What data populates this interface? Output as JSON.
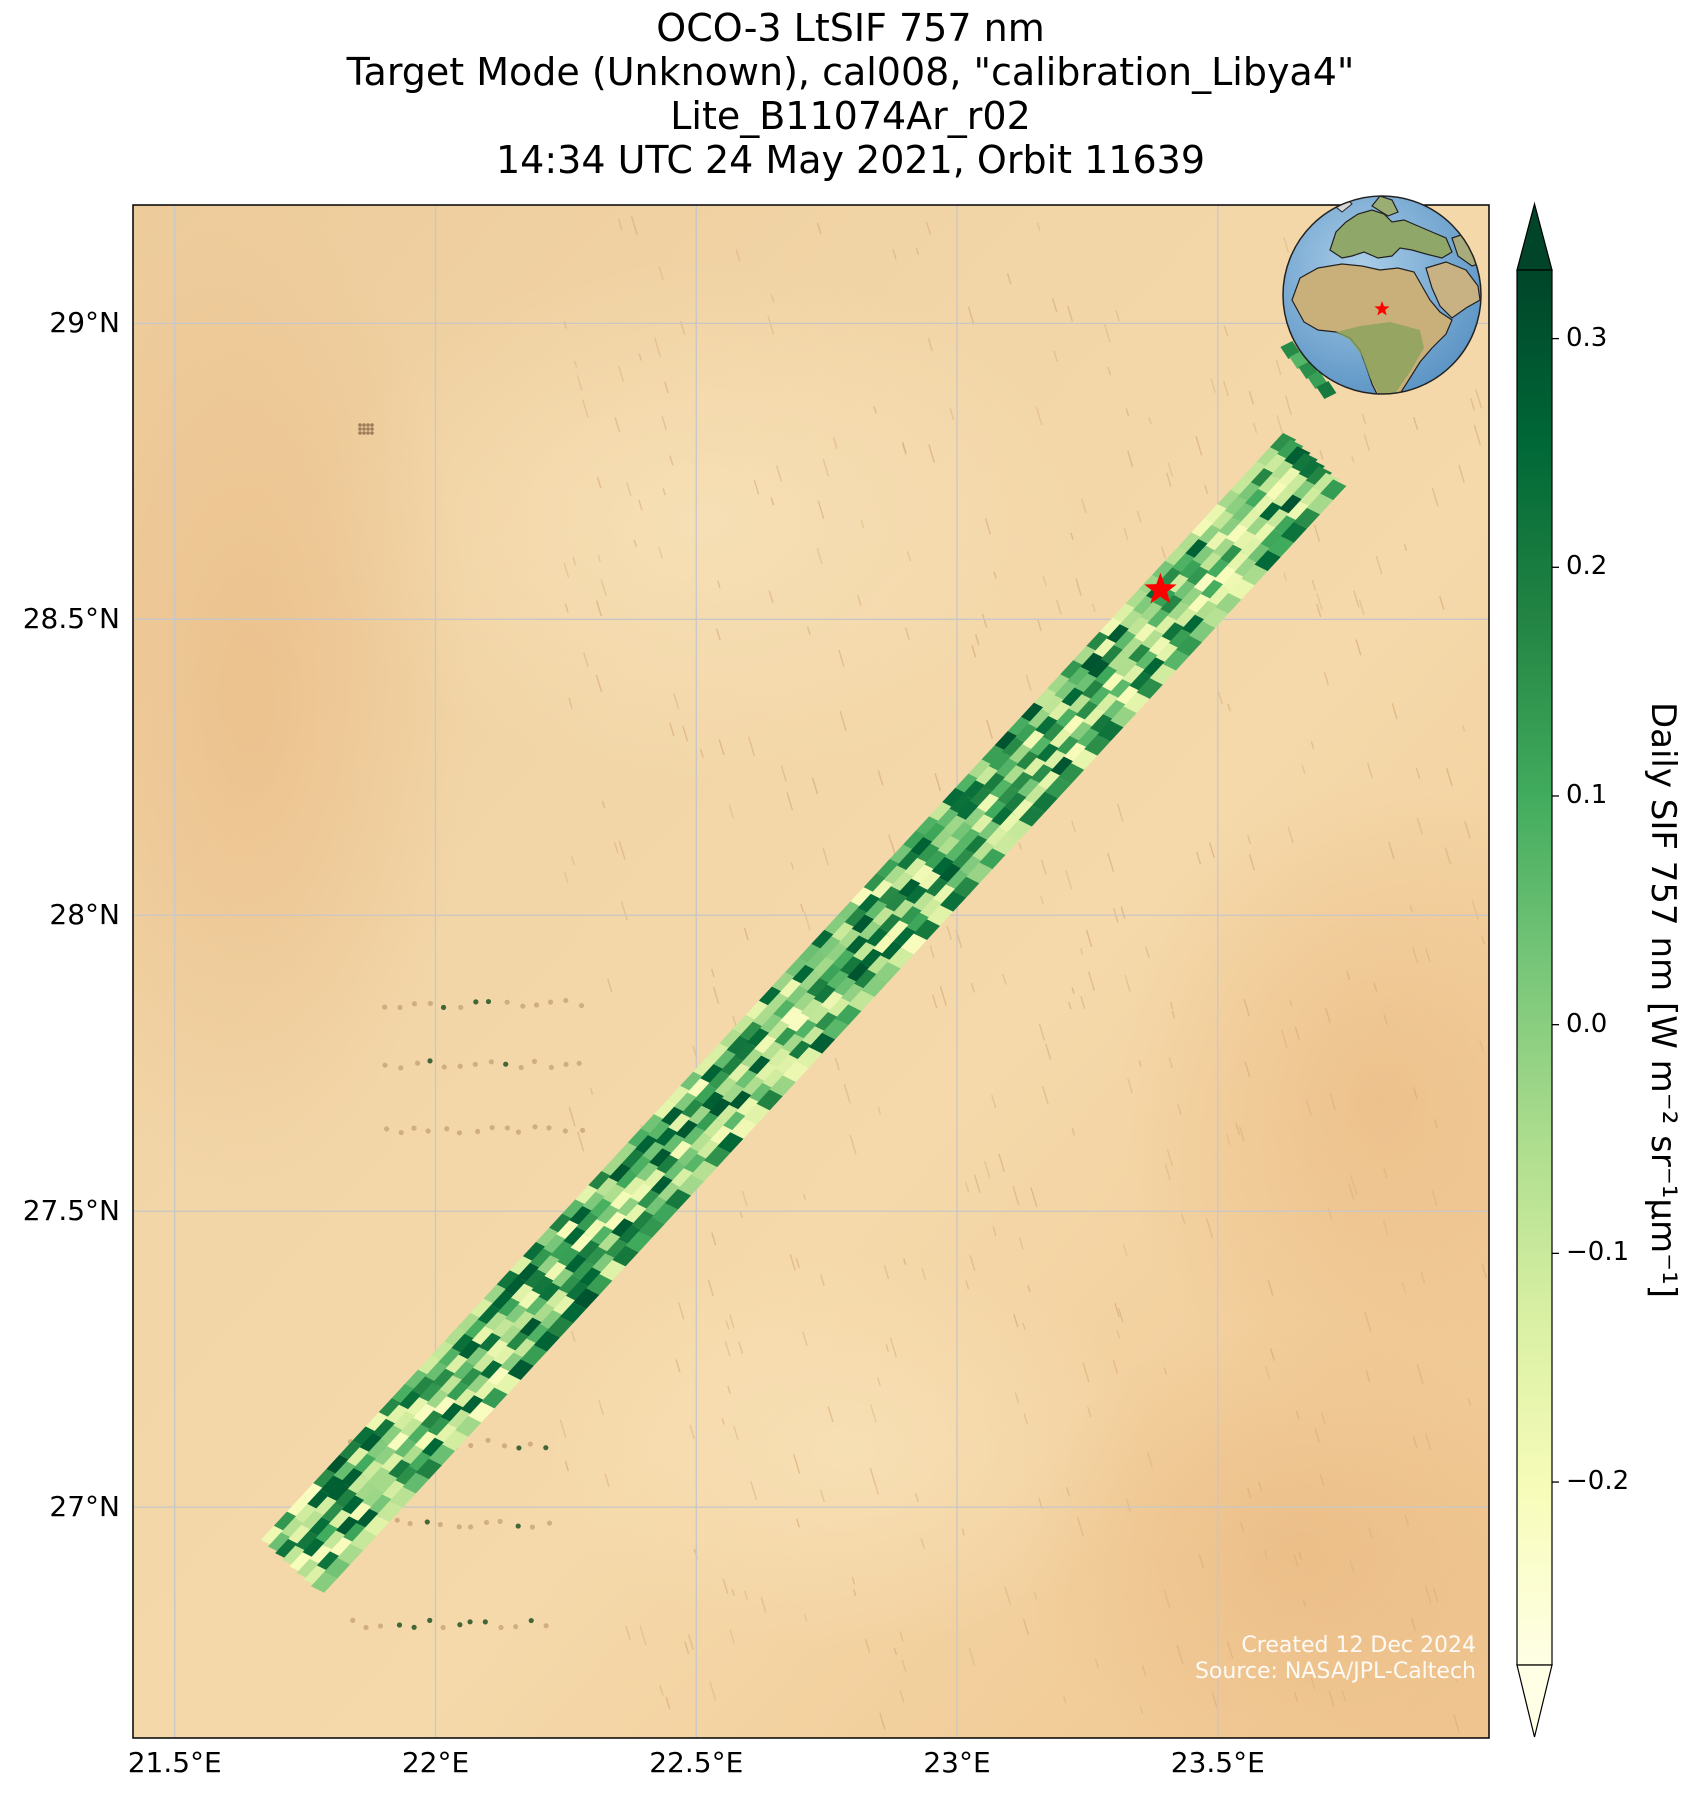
{
  "title": {
    "line1": "OCO-3 LtSIF 757 nm",
    "line2": "Target Mode (Unknown), cal008, \"calibration_Libya4\"",
    "line3": "Lite_B11074Ar_r02",
    "line4": "14:34 UTC 24 May 2021, Orbit 11639"
  },
  "map": {
    "lon_range": [
      21.42,
      24.02
    ],
    "lat_range": [
      26.61,
      29.2
    ],
    "lon_ticks": [
      "21.5°E",
      "22°E",
      "22.5°E",
      "23°E",
      "23.5°E"
    ],
    "lat_ticks": [
      "29°N",
      "28.5°N",
      "28°N",
      "27.5°N",
      "27°N"
    ],
    "target": {
      "lon": 23.39,
      "lat": 28.55,
      "marker": "red-star"
    },
    "swath": {
      "start": {
        "lon": 21.72,
        "lat": 26.9
      },
      "end": {
        "lon": 23.68,
        "lat": 28.77
      }
    },
    "colors": {
      "background": "#ecc898",
      "gridline": "#c7c7c7",
      "target": "#ff0000"
    }
  },
  "colorbar": {
    "label": "Daily SIF 757 nm [W m⁻² sr⁻¹μm⁻¹]",
    "ticks": [
      "0.3",
      "0.2",
      "0.1",
      "0.0",
      "−0.1",
      "−0.2"
    ],
    "tick_values": [
      0.3,
      0.2,
      0.1,
      0.0,
      -0.1,
      -0.2
    ],
    "range": [
      -0.28,
      0.33
    ],
    "colormap": "YlGn",
    "extend": "both"
  },
  "inset": {
    "type": "globe",
    "marker": "red-star",
    "region": "Africa / Europe"
  },
  "credit": {
    "line1": "Created 12 Dec 2024",
    "line2": "Source: NASA/JPL-Caltech"
  }
}
